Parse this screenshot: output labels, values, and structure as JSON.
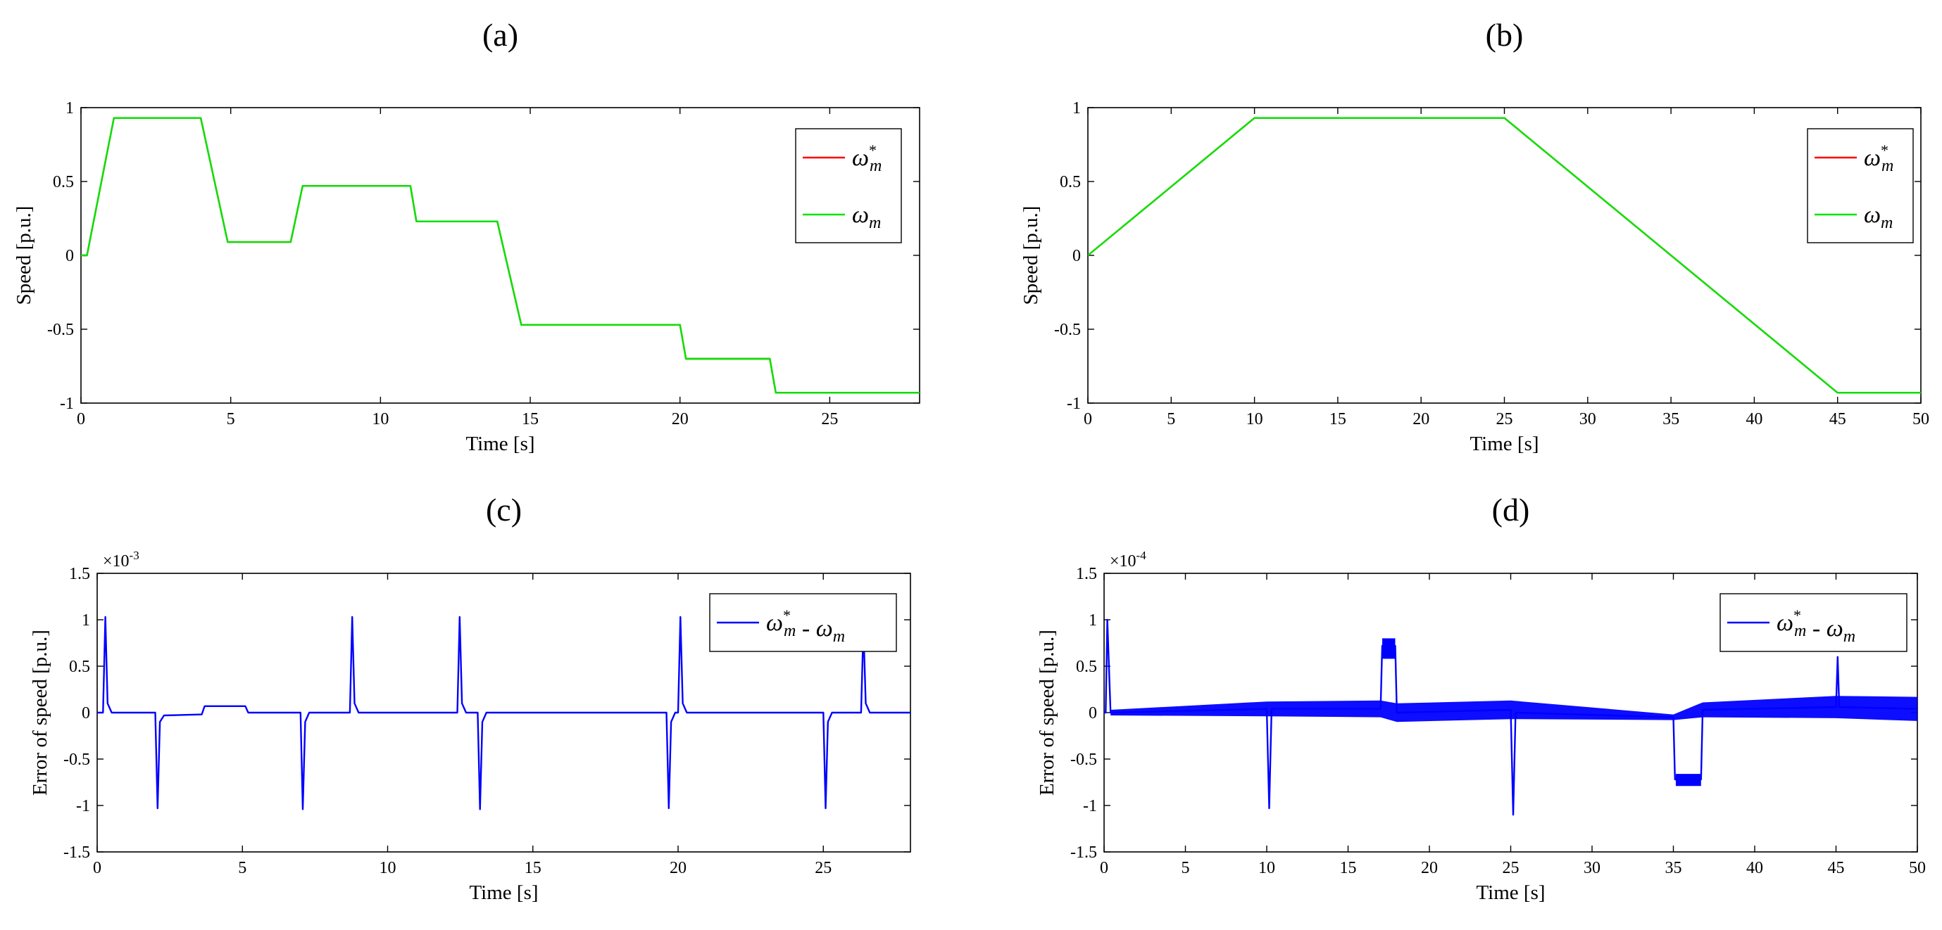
{
  "chart_data": [
    {
      "type": "line",
      "panel_label": "(a)",
      "xlabel": "Time [s]",
      "ylabel": "Speed [p.u.]",
      "xlim": [
        0,
        28
      ],
      "ylim": [
        -1,
        1
      ],
      "xticks": [
        0,
        5,
        10,
        15,
        20,
        25
      ],
      "yticks": [
        -1,
        -0.5,
        0,
        0.5,
        1
      ],
      "ytick_labels": [
        "-1",
        "-0.5",
        "0",
        "0.5",
        "1"
      ],
      "grid": false,
      "legend_position": "top-right",
      "colors": {
        "reference": "#ff0000",
        "measured": "#00e600"
      },
      "series": [
        {
          "name": "ω_m*",
          "color": "#ff0000",
          "x": [
            0,
            0.2,
            1.1,
            4.0,
            4.9,
            7.0,
            7.4,
            11.0,
            11.2,
            13.9,
            14.7,
            20.0,
            20.2,
            23.0,
            23.2,
            28
          ],
          "y": [
            0,
            0,
            0.93,
            0.93,
            0.09,
            0.09,
            0.47,
            0.47,
            0.23,
            0.23,
            -0.47,
            -0.47,
            -0.7,
            -0.7,
            -0.93,
            -0.93
          ]
        },
        {
          "name": "ω_m",
          "color": "#00e600",
          "x": [
            0,
            0.2,
            1.1,
            4.0,
            4.9,
            7.0,
            7.4,
            11.0,
            11.2,
            13.9,
            14.7,
            20.0,
            20.2,
            23.0,
            23.2,
            28
          ],
          "y": [
            0,
            0,
            0.93,
            0.93,
            0.09,
            0.09,
            0.47,
            0.47,
            0.23,
            0.23,
            -0.47,
            -0.47,
            -0.7,
            -0.7,
            -0.93,
            -0.93
          ]
        }
      ]
    },
    {
      "type": "line",
      "panel_label": "(b)",
      "xlabel": "Time [s]",
      "ylabel": "Speed [p.u.]",
      "xlim": [
        0,
        50
      ],
      "ylim": [
        -1,
        1
      ],
      "xticks": [
        0,
        5,
        10,
        15,
        20,
        25,
        30,
        35,
        40,
        45,
        50
      ],
      "yticks": [
        -1,
        -0.5,
        0,
        0.5,
        1
      ],
      "ytick_labels": [
        "-1",
        "-0.5",
        "0",
        "0.5",
        "1"
      ],
      "grid": false,
      "legend_position": "top-right",
      "series": [
        {
          "name": "ω_m*",
          "color": "#ff0000",
          "x": [
            0,
            10,
            25,
            45,
            50
          ],
          "y": [
            0,
            0.93,
            0.93,
            -0.93,
            -0.93
          ]
        },
        {
          "name": "ω_m",
          "color": "#00e600",
          "x": [
            0,
            10,
            25,
            45,
            50
          ],
          "y": [
            0,
            0.93,
            0.93,
            -0.93,
            -0.93
          ]
        }
      ]
    },
    {
      "type": "line",
      "panel_label": "(c)",
      "xlabel": "Time [s]",
      "ylabel": "Error of speed [p.u.]",
      "exponent_label": "×10",
      "exponent_power": "-3",
      "xlim": [
        0,
        28
      ],
      "ylim": [
        -1.5,
        1.5
      ],
      "xticks": [
        0,
        5,
        10,
        15,
        20,
        25
      ],
      "yticks": [
        -1.5,
        -1,
        -0.5,
        0,
        0.5,
        1,
        1.5
      ],
      "ytick_labels": [
        "-1.5",
        "-1",
        "-0.5",
        "0",
        "0.5",
        "1",
        "1.5"
      ],
      "grid": false,
      "legend_position": "top-right",
      "series": [
        {
          "name": "ω_m* - ω_m",
          "color": "#0000ff",
          "x": [
            0,
            0.2,
            0.28,
            0.36,
            0.5,
            2.0,
            2.08,
            2.16,
            2.3,
            3.6,
            3.7,
            5.1,
            5.2,
            7.0,
            7.08,
            7.16,
            7.3,
            8.7,
            8.78,
            8.86,
            9.0,
            12.4,
            12.48,
            12.56,
            12.7,
            13.1,
            13.18,
            13.26,
            13.4,
            19.6,
            19.68,
            19.76,
            19.9,
            20.0,
            20.08,
            20.16,
            20.3,
            25.0,
            25.08,
            25.16,
            25.3,
            26.3,
            26.38,
            26.46,
            26.6,
            28
          ],
          "y": [
            0,
            0,
            1.03,
            0.1,
            0,
            0,
            -1.03,
            -0.1,
            -0.03,
            -0.02,
            0.07,
            0.07,
            0,
            0,
            -1.04,
            -0.1,
            0,
            0,
            1.03,
            0.1,
            0,
            0,
            1.03,
            0.1,
            0,
            0,
            -1.04,
            -0.1,
            0,
            0,
            -1.03,
            -0.1,
            0,
            0,
            1.03,
            0.1,
            0,
            0,
            -1.03,
            -0.1,
            0,
            0,
            0.93,
            0.1,
            0,
            0
          ]
        }
      ]
    },
    {
      "type": "line",
      "panel_label": "(d)",
      "xlabel": "Time [s]",
      "ylabel": "Error of speed [p.u.]",
      "exponent_label": "×10",
      "exponent_power": "-4",
      "xlim": [
        0,
        50
      ],
      "ylim": [
        -1.5,
        1.5
      ],
      "xticks": [
        0,
        5,
        10,
        15,
        20,
        25,
        30,
        35,
        40,
        45,
        50
      ],
      "yticks": [
        -1.5,
        -1,
        -0.5,
        0,
        0.5,
        1,
        1.5
      ],
      "ytick_labels": [
        "-1.5",
        "-1",
        "-0.5",
        "0",
        "0.5",
        "1",
        "1.5"
      ],
      "grid": false,
      "legend_position": "top-right",
      "series": [
        {
          "name": "ω_m* - ω_m",
          "color": "#0000ff",
          "x": [
            0,
            0.1,
            0.2,
            0.4,
            10.0,
            10.15,
            10.3,
            17.0,
            17.1,
            17.9,
            18.0,
            25.0,
            25.15,
            25.3,
            35.0,
            35.1,
            36.7,
            36.8,
            45.0,
            45.1,
            45.2,
            50
          ],
          "y": [
            0,
            0,
            1.0,
            0,
            0.04,
            -1.03,
            0.04,
            0.04,
            0.72,
            0.72,
            0,
            0.03,
            -1.1,
            0,
            -0.05,
            -0.72,
            -0.72,
            0.03,
            0.06,
            0.6,
            0.06,
            0.04
          ],
          "noise_envelope": {
            "x": [
              0.4,
              10,
              17,
              18,
              25,
              35,
              36.8,
              45,
              50
            ],
            "half_width": [
              0.03,
              0.08,
              0.09,
              0.1,
              0.1,
              0.03,
              0.08,
              0.12,
              0.13
            ]
          }
        }
      ]
    }
  ]
}
